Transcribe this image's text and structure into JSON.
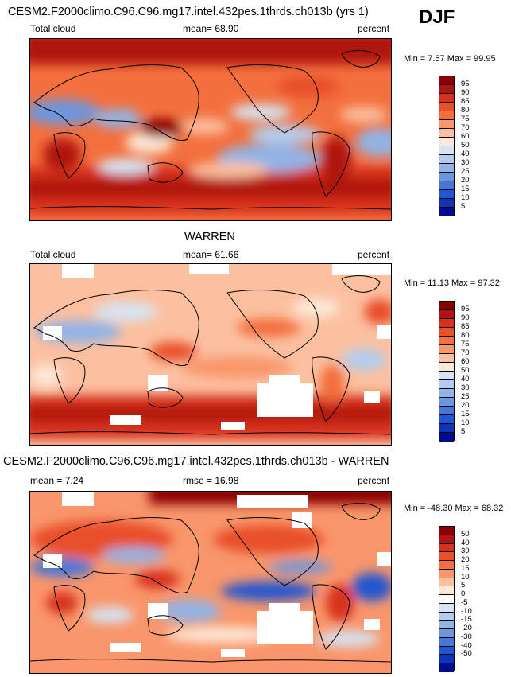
{
  "season": "DJF",
  "panels": [
    {
      "id": "model",
      "main_title": "CESM2.F2000climo.C96.C96.mg17.intel.432pes.1thrds.ch013b (yrs 1)",
      "left_label": "Total cloud",
      "center_label": "mean=  68.90",
      "right_label": "percent",
      "minmax": "Min =  7.57 Max =  99.95",
      "colorbar": {
        "colors": [
          "#8b0000",
          "#b01410",
          "#d7301f",
          "#e8502a",
          "#f3703e",
          "#f9966b",
          "#fcc0a0",
          "#fde8d8",
          "#d6e4f5",
          "#b4cdee",
          "#92b3e5",
          "#6e96dd",
          "#4677d6",
          "#2056cf",
          "#0c36b5",
          "#020b8a"
        ],
        "labels": [
          "95",
          "90",
          "85",
          "80",
          "75",
          "70",
          "60",
          "50",
          "40",
          "30",
          "25",
          "20",
          "15",
          "10",
          "5"
        ]
      }
    },
    {
      "id": "obs",
      "main_title": "WARREN",
      "left_label": "Total cloud",
      "center_label": "mean=  61.66",
      "right_label": "percent",
      "minmax": "Min =  11.13 Max =  97.32",
      "colorbar": {
        "colors": [
          "#8b0000",
          "#b01410",
          "#d7301f",
          "#e8502a",
          "#f3703e",
          "#f9966b",
          "#fcc0a0",
          "#fde8d8",
          "#d6e4f5",
          "#b4cdee",
          "#92b3e5",
          "#6e96dd",
          "#4677d6",
          "#2056cf",
          "#0c36b5",
          "#020b8a"
        ],
        "labels": [
          "95",
          "90",
          "85",
          "80",
          "75",
          "70",
          "60",
          "50",
          "40",
          "30",
          "25",
          "20",
          "15",
          "10",
          "5"
        ]
      }
    },
    {
      "id": "diff",
      "main_title": "CESM2.F2000climo.C96.C96.mg17.intel.432pes.1thrds.ch013b - WARREN",
      "left_label": "mean =  7.24",
      "center_label": "rmse =  16.98",
      "right_label": "percent",
      "minmax": "Min = -48.30 Max =  68.32",
      "colorbar": {
        "colors": [
          "#8b0000",
          "#b01410",
          "#d7301f",
          "#e8502a",
          "#f3703e",
          "#f9966b",
          "#fcc0a0",
          "#fde8d8",
          "#ffffff",
          "#d6e4f5",
          "#b4cdee",
          "#92b3e5",
          "#6e96dd",
          "#4677d6",
          "#2056cf",
          "#0c36b5",
          "#020b8a"
        ],
        "labels": [
          "50",
          "40",
          "30",
          "20",
          "15",
          "10",
          "5",
          "0",
          "-5",
          "-10",
          "-15",
          "-20",
          "-30",
          "-40",
          "-50"
        ]
      }
    }
  ]
}
